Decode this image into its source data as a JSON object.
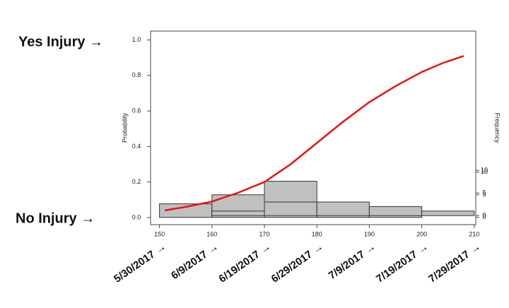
{
  "chart_data": {
    "type": "logistic-histogram",
    "ylabel": "Probability",
    "y2label": "Frequency",
    "annotations": [
      "Yes Injury →",
      "No Injury →"
    ],
    "date_labels": [
      "5/30/2017 →",
      "6/9/2017 →",
      "6/19/2017 →",
      "6/29/2017 →",
      "7/9/2017 →",
      "7/19/2017 →",
      "7/29/2017 →"
    ],
    "xlim": [
      148.3,
      210.3
    ],
    "xticks": [
      150,
      160,
      170,
      180,
      190,
      200,
      210
    ],
    "ylim": [
      -0.04,
      1.05
    ],
    "yticks": [
      {
        "value": 0,
        "label": "0.0"
      },
      0.2,
      0.4,
      0.6,
      0.8,
      {
        "value": 1,
        "label": "1.0"
      }
    ],
    "y2lim": [
      -1.6,
      41.2
    ],
    "y2ticks": [
      0,
      5,
      10
    ],
    "y3lim": [
      -2,
      40.8
    ],
    "y3ticks": [
      0,
      5,
      10
    ],
    "bins": [
      150,
      160,
      170,
      180,
      190,
      200,
      210
    ],
    "series": [
      {
        "name": "No Injury",
        "axis": "y2",
        "color": "#c0c0c0",
        "values": [
          3,
          5,
          8,
          1,
          2,
          0
        ]
      },
      {
        "name": "Yes Injury",
        "axis": "y3",
        "color": "#c0c0c0",
        "values": [
          0,
          1,
          3,
          3,
          2,
          1
        ]
      }
    ],
    "curve": {
      "color": "#ee1111",
      "x": [
        151,
        155,
        160,
        165,
        170,
        175,
        180,
        185,
        190,
        195,
        200,
        204,
        208
      ],
      "values": [
        0.04,
        0.06,
        0.09,
        0.14,
        0.2,
        0.3,
        0.42,
        0.54,
        0.65,
        0.74,
        0.82,
        0.87,
        0.91
      ]
    }
  }
}
